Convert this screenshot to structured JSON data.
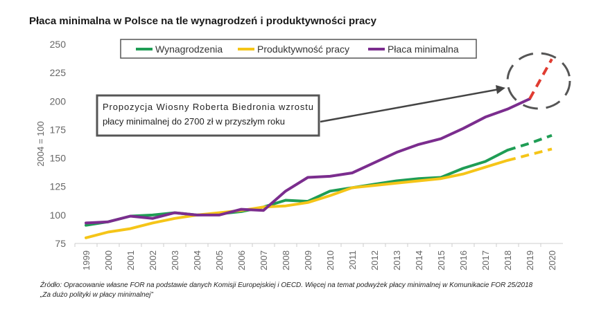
{
  "title": "Płaca minimalna w Polsce na tle wynagrodzeń i produktywności pracy",
  "source": {
    "line1": "Źródło: Opracowanie własne FOR na podstawie danych Komisji Europejskiej i OECD. Więcej na temat podwyżek płacy minimalnej w Komunikacie FOR 25/2018",
    "line2": "„Za dużo polityki w płacy minimalnej”"
  },
  "annotation": {
    "line1": "Propozycja Wiosny Roberta Biedronia wzrostu",
    "line2": "płacy minimalnej do 2700 zł w przyszłym roku"
  },
  "chart_data": {
    "type": "line",
    "title": "Płaca minimalna w Polsce na tle wynagrodzeń i produktywności pracy",
    "xlabel": "",
    "ylabel": "2004 = 100",
    "x": [
      "1999",
      "2000",
      "2001",
      "2002",
      "2003",
      "2004",
      "2005",
      "2006",
      "2007",
      "2008",
      "2009",
      "2010",
      "2011",
      "2012",
      "2013",
      "2014",
      "2015",
      "2016",
      "2017",
      "2018",
      "2019",
      "2020"
    ],
    "yticks": [
      75,
      100,
      125,
      150,
      175,
      200,
      225,
      250
    ],
    "ylim": [
      75,
      250
    ],
    "grid": false,
    "legend_position": "top",
    "series": [
      {
        "name": "Wynagrodzenia",
        "color": "#1f9d55",
        "x": [
          "1999",
          "2000",
          "2001",
          "2002",
          "2003",
          "2004",
          "2005",
          "2006",
          "2007",
          "2008",
          "2009",
          "2010",
          "2011",
          "2012",
          "2013",
          "2014",
          "2015",
          "2016",
          "2017",
          "2018"
        ],
        "values": [
          91,
          94,
          99,
          100,
          102,
          100,
          101,
          103,
          107,
          113,
          112,
          121,
          124,
          127,
          130,
          132,
          133,
          141,
          147,
          157
        ],
        "forecast_x": [
          "2018",
          "2019",
          "2020"
        ],
        "forecast_values": [
          157,
          163,
          170
        ]
      },
      {
        "name": "Produktywność pracy",
        "color": "#f5c518",
        "x": [
          "1999",
          "2000",
          "2001",
          "2002",
          "2003",
          "2004",
          "2005",
          "2006",
          "2007",
          "2008",
          "2009",
          "2010",
          "2011",
          "2012",
          "2013",
          "2014",
          "2015",
          "2016",
          "2017",
          "2018"
        ],
        "values": [
          80,
          85,
          88,
          93,
          97,
          100,
          102,
          104,
          107,
          108,
          111,
          117,
          124,
          126,
          128,
          130,
          132,
          136,
          142,
          148
        ],
        "forecast_x": [
          "2018",
          "2019",
          "2020"
        ],
        "forecast_values": [
          148,
          153,
          158
        ]
      },
      {
        "name": "Płaca minimalna",
        "color": "#7b2d8e",
        "x": [
          "1999",
          "2000",
          "2001",
          "2002",
          "2003",
          "2004",
          "2005",
          "2006",
          "2007",
          "2008",
          "2009",
          "2010",
          "2011",
          "2012",
          "2013",
          "2014",
          "2015",
          "2016",
          "2017",
          "2018",
          "2019"
        ],
        "values": [
          93,
          94,
          99,
          97,
          102,
          100,
          100,
          105,
          104,
          121,
          133,
          134,
          137,
          146,
          155,
          162,
          167,
          176,
          186,
          193,
          202
        ],
        "forecast_x": [
          "2019",
          "2020"
        ],
        "forecast_values": [
          202,
          237
        ],
        "forecast_color": "#e03c31"
      }
    ],
    "highlight_color": "#555555"
  }
}
